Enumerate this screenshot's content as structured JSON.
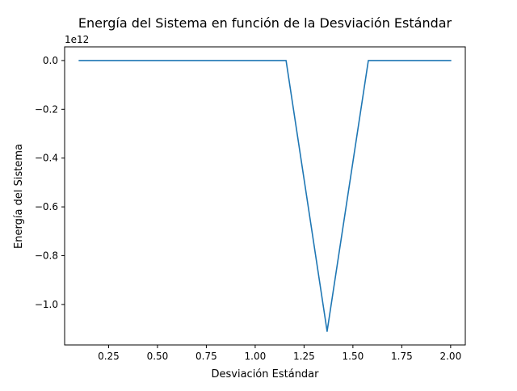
{
  "chart_data": {
    "type": "line",
    "title": "Energía del Sistema en función de la Desviación Estándar",
    "xlabel": "Desviación Estándar",
    "ylabel": "Energía del Sistema",
    "y_offset_label": "1e12",
    "y_multiplier": 1000000000000.0,
    "xlim": [
      0.025,
      2.075
    ],
    "ylim": [
      -1.166,
      0.056
    ],
    "x_ticks": [
      0.25,
      0.5,
      0.75,
      1.0,
      1.25,
      1.5,
      1.75,
      2.0
    ],
    "x_tick_labels": [
      "0.25",
      "0.50",
      "0.75",
      "1.00",
      "1.25",
      "1.50",
      "1.75",
      "2.00"
    ],
    "y_ticks": [
      0.0,
      -0.2,
      -0.4,
      -0.6,
      -0.8,
      -1.0
    ],
    "y_tick_labels": [
      "0.0",
      "−0.2",
      "−0.4",
      "−0.6",
      "−0.8",
      "−1.0"
    ],
    "grid": false,
    "series": [
      {
        "color": "#1f77b4",
        "x": [
          0.1,
          1.158,
          1.368,
          1.579,
          2.0
        ],
        "y": [
          0.0,
          0.0,
          -1.11,
          0.0,
          0.0
        ]
      }
    ]
  }
}
